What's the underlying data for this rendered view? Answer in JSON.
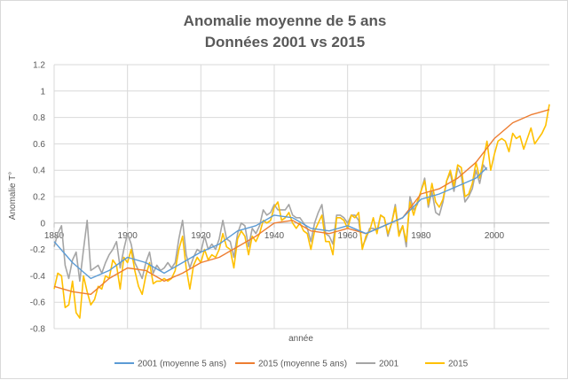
{
  "chart_data": {
    "type": "line",
    "title_line1": "Anomalie moyenne de 5 ans",
    "title_line2": "Données 2001 vs 2015",
    "xlabel": "année",
    "ylabel": "Anomalie T°",
    "xlim": [
      1880,
      2015
    ],
    "ylim": [
      -0.8,
      1.2
    ],
    "xticks": [
      1880,
      1900,
      1920,
      1940,
      1960,
      1980,
      2000
    ],
    "yticks": [
      -0.8,
      -0.6,
      -0.4,
      -0.2,
      0,
      0.2,
      0.4,
      0.6,
      0.8,
      1,
      1.2
    ],
    "grid": true,
    "legend_position": "bottom",
    "series": [
      {
        "name": "2001 (moyenne 5 ans)",
        "color": "#5b9bd5",
        "x": [
          1880,
          1885,
          1890,
          1895,
          1900,
          1905,
          1910,
          1915,
          1920,
          1925,
          1930,
          1935,
          1940,
          1945,
          1950,
          1955,
          1960,
          1965,
          1970,
          1975,
          1980,
          1985,
          1990,
          1995,
          1998
        ],
        "y": [
          -0.14,
          -0.3,
          -0.42,
          -0.36,
          -0.26,
          -0.3,
          -0.38,
          -0.3,
          -0.22,
          -0.16,
          -0.06,
          -0.02,
          0.06,
          0.04,
          -0.04,
          -0.06,
          -0.02,
          -0.08,
          -0.02,
          0.04,
          0.18,
          0.22,
          0.28,
          0.34,
          0.42
        ]
      },
      {
        "name": "2015 (moyenne 5 ans)",
        "color": "#ed7d31",
        "x": [
          1880,
          1885,
          1890,
          1895,
          1900,
          1905,
          1910,
          1915,
          1920,
          1925,
          1930,
          1935,
          1940,
          1945,
          1950,
          1955,
          1960,
          1965,
          1970,
          1975,
          1980,
          1985,
          1990,
          1995,
          2000,
          2005,
          2010,
          2015
        ],
        "y": [
          -0.48,
          -0.52,
          -0.54,
          -0.42,
          -0.34,
          -0.36,
          -0.44,
          -0.38,
          -0.3,
          -0.26,
          -0.18,
          -0.1,
          0,
          0.02,
          -0.06,
          -0.08,
          -0.04,
          -0.08,
          -0.02,
          0.04,
          0.22,
          0.26,
          0.34,
          0.46,
          0.64,
          0.76,
          0.82,
          0.86
        ]
      },
      {
        "name": "2001",
        "color": "#a5a5a5",
        "x": [
          1880,
          1881,
          1882,
          1883,
          1884,
          1885,
          1886,
          1887,
          1888,
          1889,
          1890,
          1891,
          1892,
          1893,
          1894,
          1895,
          1896,
          1897,
          1898,
          1899,
          1900,
          1901,
          1902,
          1903,
          1904,
          1905,
          1906,
          1907,
          1908,
          1909,
          1910,
          1911,
          1912,
          1913,
          1914,
          1915,
          1916,
          1917,
          1918,
          1919,
          1920,
          1921,
          1922,
          1923,
          1924,
          1925,
          1926,
          1927,
          1928,
          1929,
          1930,
          1931,
          1932,
          1933,
          1934,
          1935,
          1936,
          1937,
          1938,
          1939,
          1940,
          1941,
          1942,
          1943,
          1944,
          1945,
          1946,
          1947,
          1948,
          1949,
          1950,
          1951,
          1952,
          1953,
          1954,
          1955,
          1956,
          1957,
          1958,
          1959,
          1960,
          1961,
          1962,
          1963,
          1964,
          1965,
          1966,
          1967,
          1968,
          1969,
          1970,
          1971,
          1972,
          1973,
          1974,
          1975,
          1976,
          1977,
          1978,
          1979,
          1980,
          1981,
          1982,
          1983,
          1984,
          1985,
          1986,
          1987,
          1988,
          1989,
          1990,
          1991,
          1992,
          1993,
          1994,
          1995,
          1996,
          1997,
          1998
        ],
        "y": [
          -0.18,
          -0.08,
          -0.02,
          -0.32,
          -0.42,
          -0.28,
          -0.22,
          -0.44,
          -0.2,
          0.02,
          -0.36,
          -0.34,
          -0.32,
          -0.38,
          -0.3,
          -0.24,
          -0.2,
          -0.14,
          -0.34,
          -0.2,
          -0.08,
          -0.16,
          -0.3,
          -0.36,
          -0.42,
          -0.3,
          -0.22,
          -0.38,
          -0.32,
          -0.36,
          -0.34,
          -0.3,
          -0.34,
          -0.3,
          -0.12,
          0.02,
          -0.24,
          -0.34,
          -0.26,
          -0.2,
          -0.22,
          -0.1,
          -0.2,
          -0.16,
          -0.2,
          -0.12,
          0.02,
          -0.12,
          -0.14,
          -0.26,
          -0.08,
          0,
          -0.02,
          -0.18,
          -0.04,
          -0.08,
          -0.02,
          0.1,
          0.06,
          0.08,
          0.14,
          0.1,
          0.1,
          0.1,
          0.14,
          0.06,
          0.04,
          0.04,
          0,
          -0.04,
          -0.14,
          0,
          0.08,
          0.14,
          -0.08,
          -0.1,
          -0.16,
          0.06,
          0.06,
          0.04,
          0,
          0.06,
          0.06,
          0.02,
          -0.18,
          -0.12,
          -0.04,
          -0.04,
          -0.06,
          0.06,
          0.04,
          -0.1,
          0,
          0.14,
          -0.08,
          -0.02,
          -0.18,
          0.2,
          0.1,
          0.14,
          0.24,
          0.34,
          0.12,
          0.24,
          0.08,
          0.06,
          0.16,
          0.32,
          0.38,
          0.24,
          0.42,
          0.36,
          0.16,
          0.2,
          0.26,
          0.4,
          0.3,
          0.44,
          0.4
        ]
      },
      {
        "name": "2015",
        "color": "#ffc000",
        "x": [
          1880,
          1881,
          1882,
          1883,
          1884,
          1885,
          1886,
          1887,
          1888,
          1889,
          1890,
          1891,
          1892,
          1893,
          1894,
          1895,
          1896,
          1897,
          1898,
          1899,
          1900,
          1901,
          1902,
          1903,
          1904,
          1905,
          1906,
          1907,
          1908,
          1909,
          1910,
          1911,
          1912,
          1913,
          1914,
          1915,
          1916,
          1917,
          1918,
          1919,
          1920,
          1921,
          1922,
          1923,
          1924,
          1925,
          1926,
          1927,
          1928,
          1929,
          1930,
          1931,
          1932,
          1933,
          1934,
          1935,
          1936,
          1937,
          1938,
          1939,
          1940,
          1941,
          1942,
          1943,
          1944,
          1945,
          1946,
          1947,
          1948,
          1949,
          1950,
          1951,
          1952,
          1953,
          1954,
          1955,
          1956,
          1957,
          1958,
          1959,
          1960,
          1961,
          1962,
          1963,
          1964,
          1965,
          1966,
          1967,
          1968,
          1969,
          1970,
          1971,
          1972,
          1973,
          1974,
          1975,
          1976,
          1977,
          1978,
          1979,
          1980,
          1981,
          1982,
          1983,
          1984,
          1985,
          1986,
          1987,
          1988,
          1989,
          1990,
          1991,
          1992,
          1993,
          1994,
          1995,
          1996,
          1997,
          1998,
          1999,
          2000,
          2001,
          2002,
          2003,
          2004,
          2005,
          2006,
          2007,
          2008,
          2009,
          2010,
          2011,
          2012,
          2013,
          2014,
          2015
        ],
        "y": [
          -0.5,
          -0.38,
          -0.4,
          -0.64,
          -0.62,
          -0.44,
          -0.68,
          -0.72,
          -0.4,
          -0.52,
          -0.62,
          -0.58,
          -0.48,
          -0.5,
          -0.4,
          -0.42,
          -0.28,
          -0.32,
          -0.5,
          -0.26,
          -0.3,
          -0.2,
          -0.36,
          -0.48,
          -0.54,
          -0.4,
          -0.3,
          -0.46,
          -0.44,
          -0.44,
          -0.42,
          -0.44,
          -0.42,
          -0.36,
          -0.2,
          -0.1,
          -0.34,
          -0.5,
          -0.32,
          -0.26,
          -0.3,
          -0.2,
          -0.28,
          -0.24,
          -0.26,
          -0.2,
          -0.08,
          -0.18,
          -0.2,
          -0.34,
          -0.12,
          -0.06,
          -0.1,
          -0.24,
          -0.1,
          -0.14,
          -0.08,
          0.02,
          0,
          0.02,
          0.12,
          0.16,
          0.02,
          0.04,
          0.08,
          0,
          -0.04,
          0,
          -0.06,
          -0.08,
          -0.2,
          -0.06,
          0,
          0.06,
          -0.14,
          -0.14,
          -0.24,
          0.04,
          0.04,
          0.02,
          -0.04,
          0.06,
          0.04,
          0.08,
          -0.2,
          -0.1,
          -0.06,
          0.04,
          -0.08,
          0.06,
          0.04,
          -0.08,
          0,
          0.12,
          -0.1,
          -0.02,
          -0.14,
          0.16,
          0.06,
          0.16,
          0.24,
          0.32,
          0.14,
          0.3,
          0.16,
          0.12,
          0.18,
          0.32,
          0.4,
          0.28,
          0.44,
          0.42,
          0.2,
          0.22,
          0.3,
          0.46,
          0.34,
          0.48,
          0.62,
          0.4,
          0.52,
          0.62,
          0.64,
          0.62,
          0.54,
          0.68,
          0.64,
          0.66,
          0.56,
          0.64,
          0.72,
          0.6,
          0.64,
          0.68,
          0.74,
          0.9
        ]
      }
    ]
  }
}
